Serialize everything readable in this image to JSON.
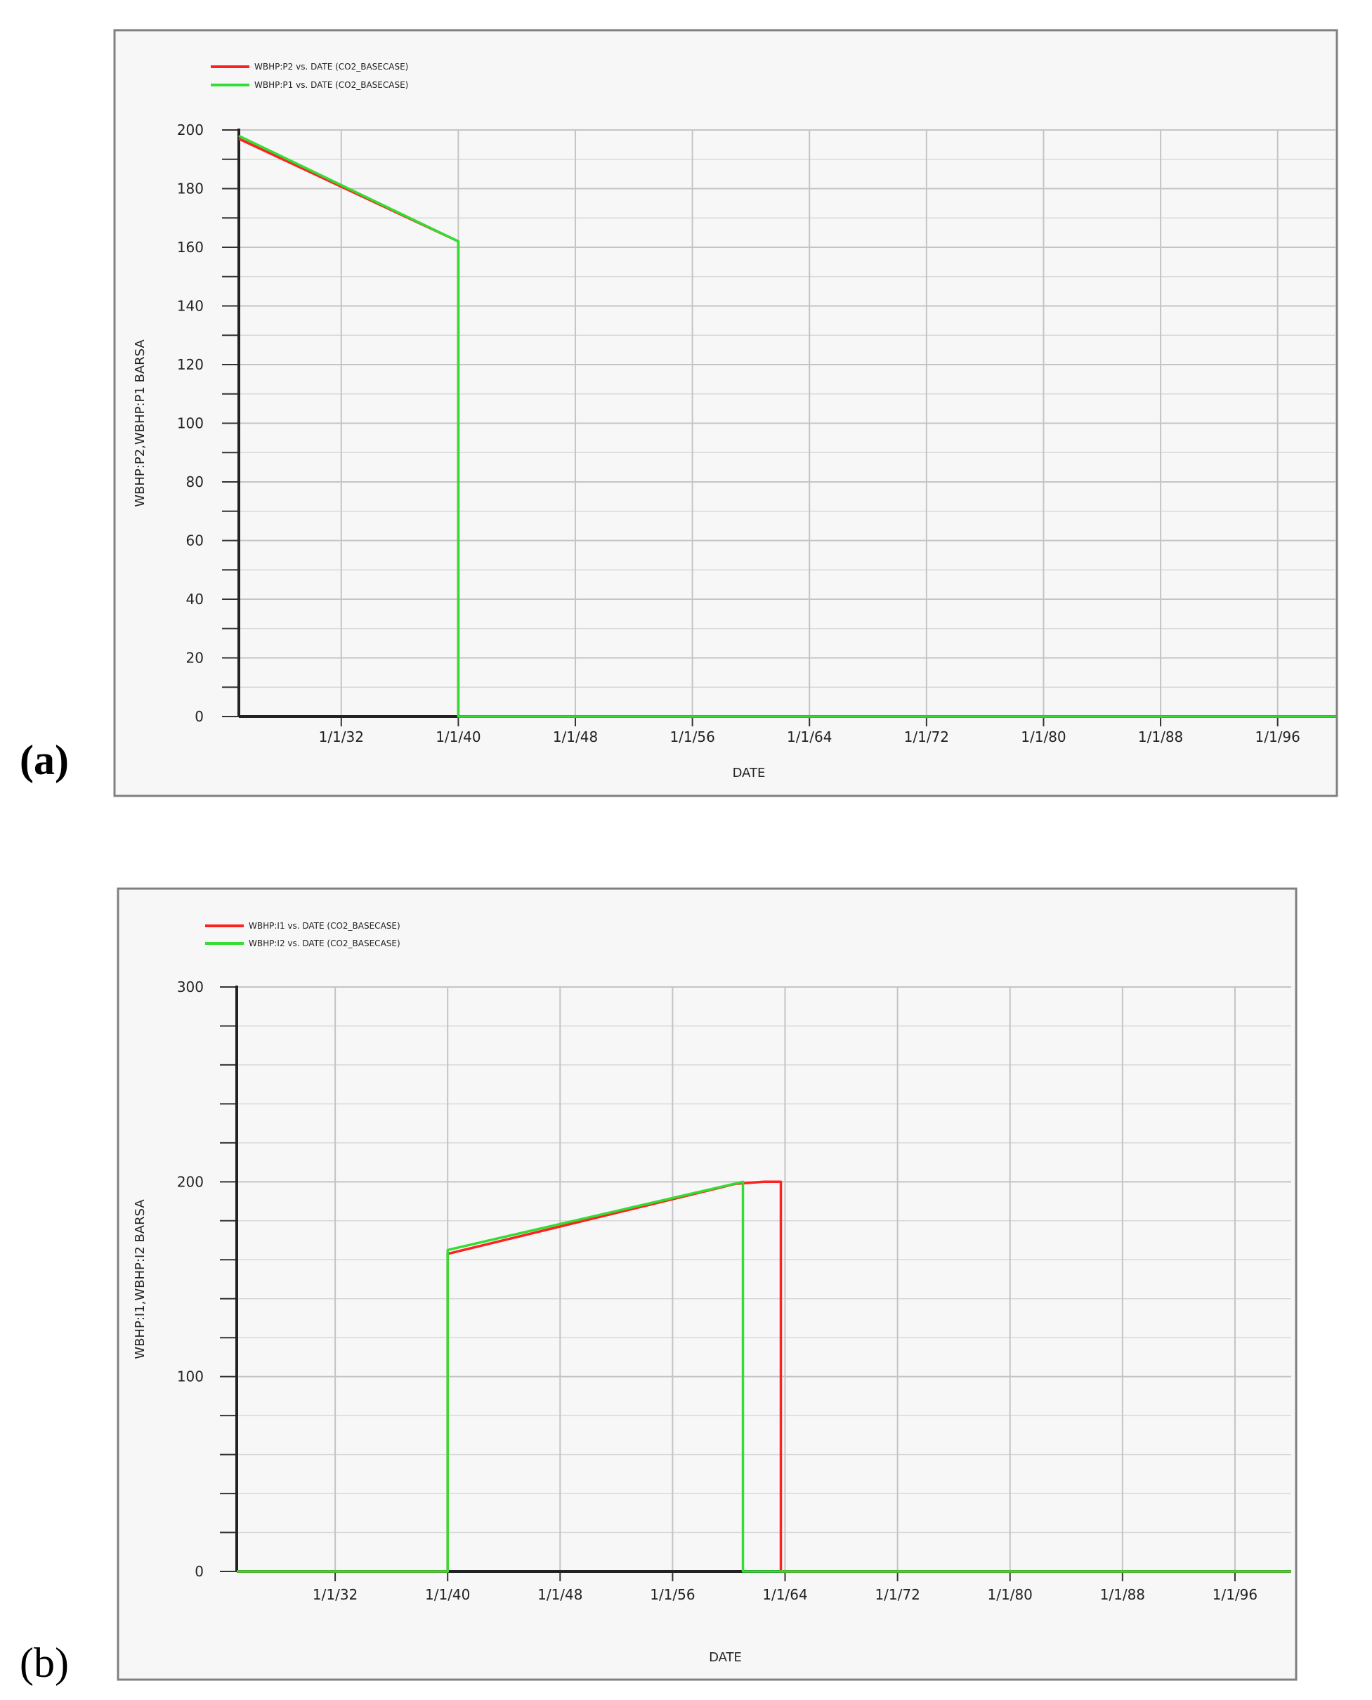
{
  "panels": [
    {
      "label": "(a)"
    },
    {
      "label": "(b)"
    }
  ],
  "chart_data": [
    {
      "type": "line",
      "xlabel": "DATE",
      "ylabel": "WBHP:P2,WBHP:P1   BARSA",
      "ylim": [
        0,
        200
      ],
      "yticks": [
        "0",
        "20",
        "40",
        "60",
        "80",
        "100",
        "120",
        "140",
        "160",
        "180",
        "200"
      ],
      "xticks": [
        "1/1/32",
        "1/1/40",
        "1/1/48",
        "1/1/56",
        "1/1/64",
        "1/1/72",
        "1/1/80",
        "1/1/88",
        "1/1/96"
      ],
      "xlim_years": [
        1925,
        2000
      ],
      "grid": true,
      "legend_position": "top-left",
      "series": [
        {
          "name": "WBHP:P2  vs.  DATE (CO2_BASECASE)",
          "color": "#ff2020",
          "x": [
            1925.0,
            1940.0,
            1940.0,
            2000.0
          ],
          "y": [
            197,
            162,
            0,
            0
          ]
        },
        {
          "name": "WBHP:P1  vs.  DATE (CO2_BASECASE)",
          "color": "#33dd33",
          "x": [
            1925.0,
            1940.0,
            1940.0,
            2000.0
          ],
          "y": [
            198,
            162,
            0,
            0
          ]
        }
      ]
    },
    {
      "type": "line",
      "xlabel": "DATE",
      "ylabel": "WBHP:I1,WBHP:I2   BARSA",
      "ylim": [
        0,
        300
      ],
      "yticks": [
        "0",
        "100",
        "200",
        "300"
      ],
      "xticks": [
        "1/1/32",
        "1/1/40",
        "1/1/48",
        "1/1/56",
        "1/1/64",
        "1/1/72",
        "1/1/80",
        "1/1/88",
        "1/1/96"
      ],
      "xlim_years": [
        1925,
        2000
      ],
      "grid": true,
      "legend_position": "top-left",
      "series": [
        {
          "name": "WBHP:I1  vs.  DATE (CO2_BASECASE)",
          "color": "#ff2020",
          "x": [
            1925.0,
            1940.0,
            1940.0,
            1960.5,
            1962.5,
            1963.7,
            1963.7,
            2000.0
          ],
          "y": [
            0,
            0,
            163,
            199,
            200,
            200,
            0,
            0
          ]
        },
        {
          "name": "WBHP:I2  vs.  DATE (CO2_BASECASE)",
          "color": "#33dd33",
          "x": [
            1925.0,
            1940.0,
            1940.0,
            1961.0,
            1961.0,
            2000.0
          ],
          "y": [
            0,
            0,
            165,
            200,
            0,
            0
          ]
        }
      ]
    }
  ]
}
